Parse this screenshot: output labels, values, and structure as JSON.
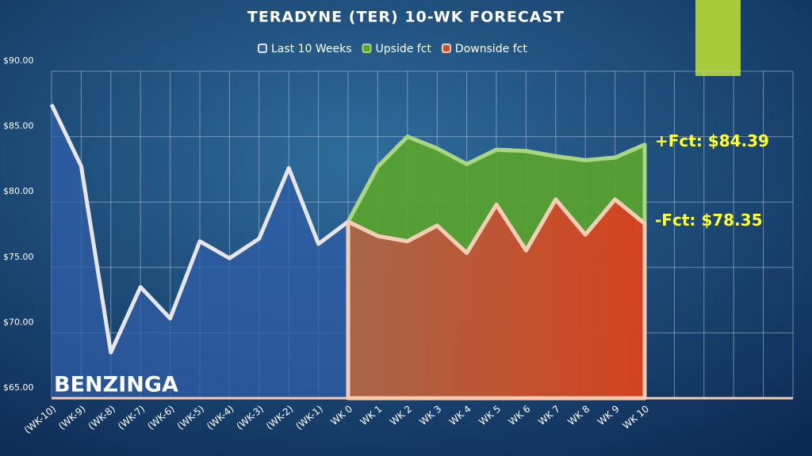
{
  "chart_data": {
    "type": "area",
    "title": "TERADYNE (TER) 10-WK FORECAST",
    "categories": [
      "(WK-10)",
      "(WK-9)",
      "(WK-8)",
      "(WK-7)",
      "(WK-6)",
      "(WK-5)",
      "(WK-4)",
      "(WK-3)",
      "(WK-2)",
      "(WK-1)",
      "WK 0",
      "WK 1",
      "WK 2",
      "WK 3",
      "WK 4",
      "WK 5",
      "WK 6",
      "WK 7",
      "WK 8",
      "WK 9",
      "WK 10",
      null,
      null,
      null,
      null,
      null
    ],
    "series": [
      {
        "name": "Last 10 Weeks",
        "color": "#e6e6e6",
        "fill": "#2f5ea8",
        "values": [
          87.46,
          82.74,
          68.5,
          73.5,
          71.1,
          77.0,
          75.7,
          77.2,
          82.6,
          76.8,
          78.5,
          null,
          null,
          null,
          null,
          null,
          null,
          null,
          null,
          null,
          null,
          null,
          null,
          null,
          null,
          null
        ]
      },
      {
        "name": "Upside fct",
        "color": "#a9d67e",
        "fill": "#5aa52c",
        "values": [
          null,
          null,
          null,
          null,
          null,
          null,
          null,
          null,
          null,
          null,
          78.5,
          82.7,
          85.0,
          84.1,
          82.9,
          84.0,
          83.9,
          83.5,
          83.2,
          83.4,
          84.39,
          null,
          null,
          null,
          null,
          null
        ]
      },
      {
        "name": "Downside fct",
        "color": "#f5cdb5",
        "fill": "#cc4f2c",
        "values": [
          null,
          null,
          null,
          null,
          null,
          null,
          null,
          null,
          null,
          null,
          78.5,
          77.4,
          77.0,
          78.2,
          76.1,
          79.8,
          76.3,
          80.2,
          77.5,
          80.2,
          78.35,
          null,
          null,
          null,
          null,
          null
        ]
      }
    ],
    "ylim": [
      65,
      90
    ],
    "yticks": [
      {
        "value": 65,
        "label": "$65.00"
      },
      {
        "value": 70,
        "label": "$70.00"
      },
      {
        "value": 75,
        "label": "$75.00"
      },
      {
        "value": 80,
        "label": "$80.00"
      },
      {
        "value": 85,
        "label": "$85.00"
      },
      {
        "value": 90,
        "label": "$90.00"
      }
    ],
    "grid": true,
    "legend": "top",
    "annotations": [
      "+Fct: $84.39",
      "-Fct: $78.35"
    ],
    "watermark": "BENZINGA"
  }
}
